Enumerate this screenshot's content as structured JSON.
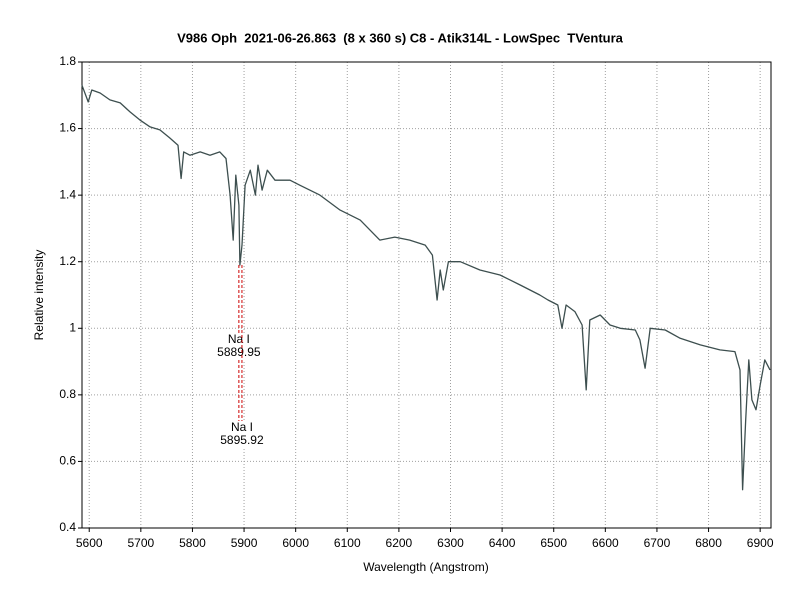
{
  "chart_data": {
    "type": "line",
    "title": "V986 Oph  2021-06-26.863  (8 x 360 s) C8 - Atik314L - LowSpec  TVentura",
    "x_label": "Wavelength (Angstrom)",
    "y_label": "Relative intensity",
    "xlim": [
      5586,
      6921
    ],
    "ylim": [
      0.4,
      1.8
    ],
    "xticks": [
      5600,
      5700,
      5800,
      5900,
      6000,
      6100,
      6200,
      6300,
      6400,
      6500,
      6600,
      6700,
      6800,
      6900
    ],
    "yticks": [
      0.4,
      0.6,
      0.8,
      1,
      1.2,
      1.4,
      1.6,
      1.8
    ],
    "grid": true,
    "series": [
      {
        "color": "#3d4f4f",
        "x": [
          5586,
          5598,
          5605,
          5621,
          5640,
          5660,
          5679,
          5698,
          5718,
          5737,
          5756,
          5772,
          5778,
          5783,
          5795,
          5815,
          5834,
          5853,
          5865,
          5873,
          5879,
          5884,
          5890,
          5892,
          5896,
          5902,
          5912,
          5922,
          5927,
          5935,
          5945,
          5960,
          5989,
          6008,
          6047,
          6086,
          6125,
          6163,
          6192,
          6221,
          6251,
          6265,
          6274,
          6280,
          6286,
          6296,
          6319,
          6357,
          6396,
          6435,
          6473,
          6489,
          6508,
          6516,
          6524,
          6541,
          6555,
          6563,
          6570,
          6590,
          6609,
          6629,
          6658,
          6667,
          6677,
          6687,
          6716,
          6745,
          6784,
          6822,
          6851,
          6861,
          6866,
          6872,
          6878,
          6884,
          6892,
          6900,
          6909,
          6919
        ],
        "values": [
          1.73,
          1.68,
          1.716,
          1.707,
          1.686,
          1.677,
          1.65,
          1.626,
          1.605,
          1.596,
          1.572,
          1.55,
          1.45,
          1.53,
          1.52,
          1.53,
          1.52,
          1.53,
          1.51,
          1.4,
          1.265,
          1.46,
          1.37,
          1.19,
          1.25,
          1.43,
          1.475,
          1.4,
          1.49,
          1.415,
          1.475,
          1.445,
          1.445,
          1.43,
          1.4,
          1.355,
          1.325,
          1.265,
          1.274,
          1.265,
          1.25,
          1.22,
          1.085,
          1.175,
          1.115,
          1.2,
          1.2,
          1.175,
          1.16,
          1.13,
          1.1,
          1.085,
          1.07,
          1.0,
          1.07,
          1.05,
          1.01,
          0.815,
          1.025,
          1.04,
          1.01,
          1.0,
          0.995,
          0.965,
          0.88,
          1.0,
          0.995,
          0.97,
          0.95,
          0.935,
          0.93,
          0.875,
          0.515,
          0.725,
          0.905,
          0.785,
          0.755,
          0.83,
          0.905,
          0.875
        ]
      }
    ],
    "annotations": [
      {
        "text": "Na I",
        "x": 5889.95,
        "color": "#cc0000"
      },
      {
        "text": "Na I",
        "x": 5895.92,
        "color": "#cc0000"
      }
    ]
  }
}
